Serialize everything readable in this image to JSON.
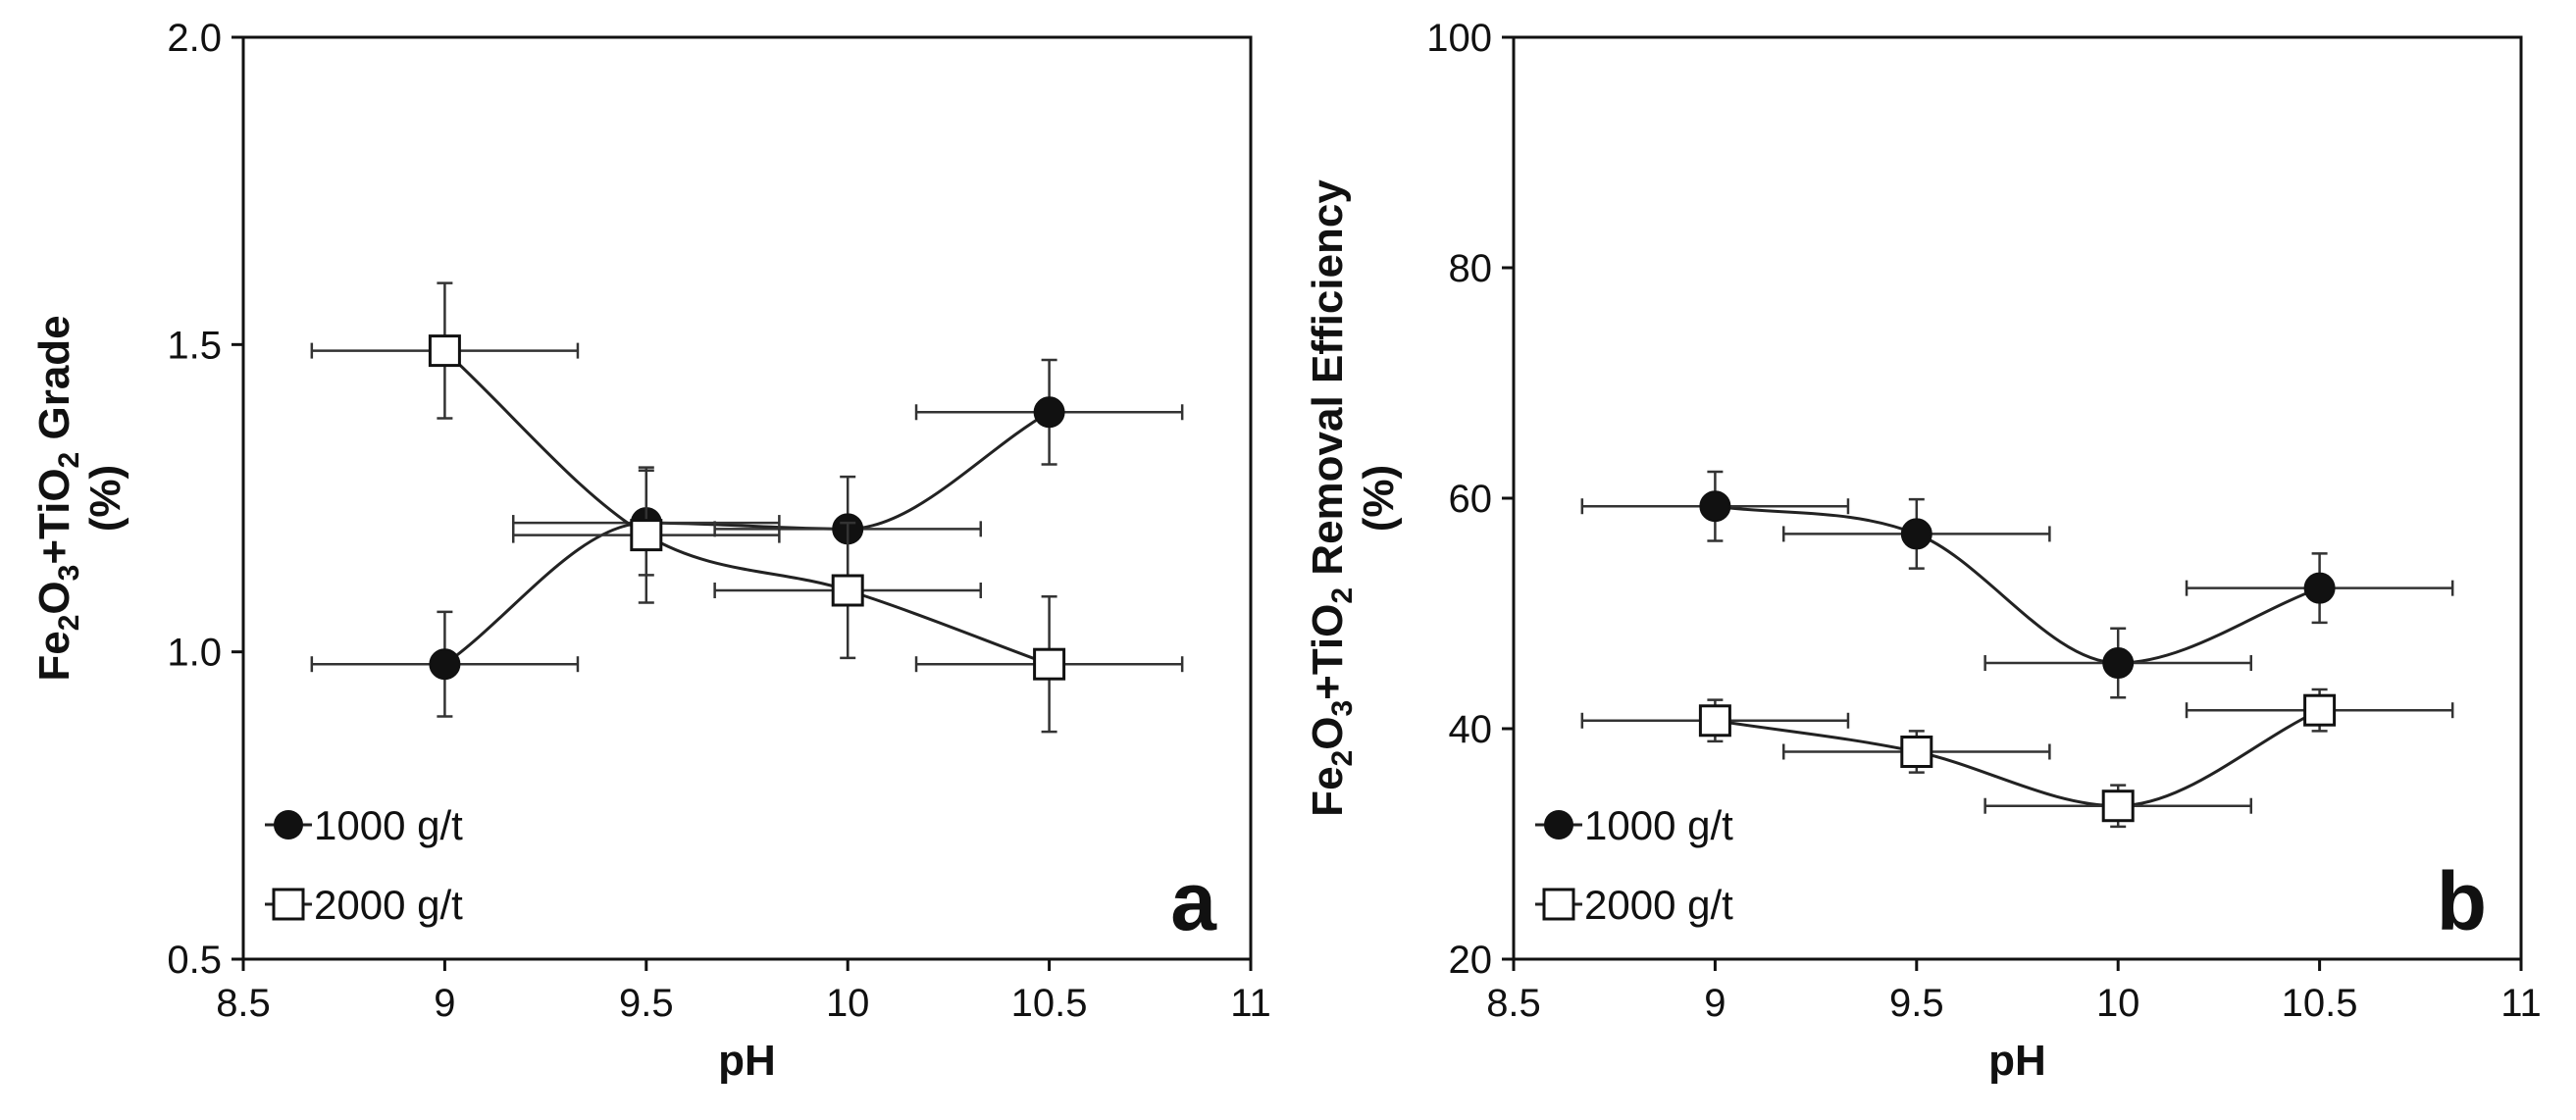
{
  "chart_data": [
    {
      "type": "scatter",
      "panel_label": "a",
      "xlabel": "pH",
      "ylabel_parts": [
        "Fe",
        "2",
        "O",
        "3",
        "+TiO",
        "2",
        " Grade"
      ],
      "ylabel_unit": "(%)",
      "xlim": [
        8.5,
        11
      ],
      "ylim": [
        0.5,
        2.0
      ],
      "xticks": [
        "8.5",
        "9",
        "9.5",
        "10",
        "10.5",
        "11"
      ],
      "yticks": [
        "0.5",
        "1.0",
        "1.5",
        "2.0"
      ],
      "grid": false,
      "legend_position": "bottom-left",
      "series": [
        {
          "name": "1000 g/t",
          "marker": "filled-circle",
          "x": [
            9,
            9.5,
            10,
            10.5
          ],
          "y": [
            0.98,
            1.21,
            1.2,
            1.39
          ],
          "y_err": [
            0.085,
            0.085,
            0.085,
            0.085
          ],
          "x_err": [
            0.33,
            0.33,
            0.33,
            0.33
          ]
        },
        {
          "name": "2000 g/t",
          "marker": "open-square",
          "x": [
            9,
            9.5,
            10,
            10.5
          ],
          "y": [
            1.49,
            1.19,
            1.1,
            0.98
          ],
          "y_err": [
            0.11,
            0.11,
            0.11,
            0.11
          ],
          "x_err": [
            0.33,
            0.33,
            0.33,
            0.33
          ]
        }
      ]
    },
    {
      "type": "scatter",
      "panel_label": "b",
      "xlabel": "pH",
      "ylabel_parts": [
        "Fe",
        "2",
        "O",
        "3",
        "+TiO",
        "2",
        " Removal Efficiency"
      ],
      "ylabel_unit": "(%)",
      "xlim": [
        8.5,
        11
      ],
      "ylim": [
        20,
        100
      ],
      "xticks": [
        "8.5",
        "9",
        "9.5",
        "10",
        "10.5",
        "11"
      ],
      "yticks": [
        "20",
        "40",
        "60",
        "80",
        "100"
      ],
      "grid": false,
      "legend_position": "bottom-left",
      "series": [
        {
          "name": "1000 g/t",
          "marker": "filled-circle",
          "x": [
            9,
            9.5,
            10,
            10.5
          ],
          "y": [
            59.3,
            56.9,
            45.7,
            52.2
          ],
          "y_err": [
            3,
            3,
            3,
            3
          ],
          "x_err": [
            0.33,
            0.33,
            0.33,
            0.33
          ]
        },
        {
          "name": "2000 g/t",
          "marker": "open-square",
          "x": [
            9,
            9.5,
            10,
            10.5
          ],
          "y": [
            40.7,
            38.0,
            33.3,
            41.6
          ],
          "y_err": [
            1.8,
            1.8,
            1.8,
            1.8
          ],
          "x_err": [
            0.33,
            0.33,
            0.33,
            0.33
          ]
        }
      ]
    }
  ]
}
